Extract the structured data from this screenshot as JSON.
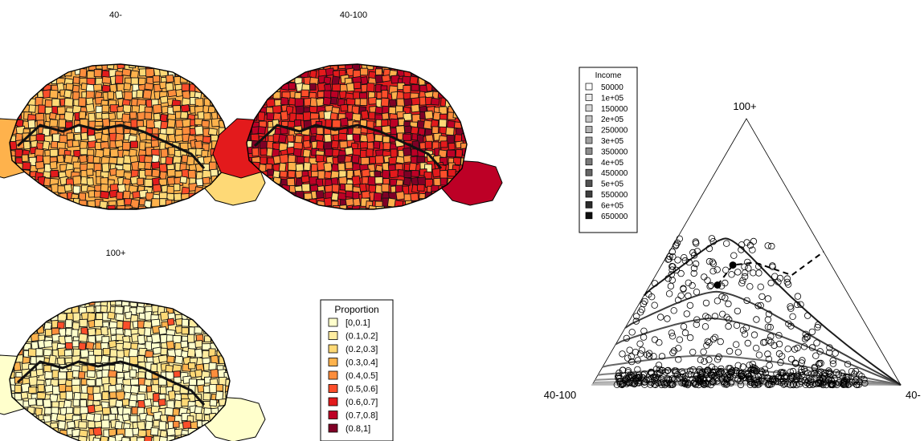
{
  "maps": [
    {
      "title": "40-",
      "palette": "low"
    },
    {
      "title": "40-100",
      "palette": "high"
    },
    {
      "title": "100+",
      "palette": "verylow"
    }
  ],
  "proportion_legend": {
    "title": "Proportion",
    "items": [
      {
        "label": "[0,0.1]",
        "color": "#FFFFCC"
      },
      {
        "label": "(0.1,0.2]",
        "color": "#FFEDA0"
      },
      {
        "label": "(0.2,0.3]",
        "color": "#FED976"
      },
      {
        "label": "(0.3,0.4]",
        "color": "#FEB24C"
      },
      {
        "label": "(0.4,0.5]",
        "color": "#FD8D3C"
      },
      {
        "label": "(0.5,0.6]",
        "color": "#FC4E2A"
      },
      {
        "label": "(0.6,0.7]",
        "color": "#E31A1C"
      },
      {
        "label": "(0.7,0.8]",
        "color": "#BD0026"
      },
      {
        "label": "(0.8,1]",
        "color": "#800026"
      }
    ]
  },
  "chart_data": {
    "type": "scatter",
    "plot": "ternary",
    "vertices": {
      "top": "100+",
      "left": "40-100",
      "right": "40-"
    },
    "legend": {
      "title": "Income",
      "placement": "top-left",
      "items": [
        {
          "label": "50000",
          "color": "#ffffff"
        },
        {
          "label": "1e+05",
          "color": "#ececec"
        },
        {
          "label": "150000",
          "color": "#d9d9d9"
        },
        {
          "label": "2e+05",
          "color": "#c6c6c6"
        },
        {
          "label": "250000",
          "color": "#b3b3b3"
        },
        {
          "label": "3e+05",
          "color": "#a0a0a0"
        },
        {
          "label": "350000",
          "color": "#8c8c8c"
        },
        {
          "label": "4e+05",
          "color": "#797979"
        },
        {
          "label": "450000",
          "color": "#666666"
        },
        {
          "label": "5e+05",
          "color": "#525252"
        },
        {
          "label": "550000",
          "color": "#3f3f3f"
        },
        {
          "label": "6e+05",
          "color": "#2c2c2c"
        },
        {
          "label": "650000",
          "color": "#0f0f0f"
        }
      ]
    },
    "income_curves": [
      {
        "income": 50000,
        "max_top": 0.0,
        "color": "#c8c8c8"
      },
      {
        "income": 100000,
        "max_top": 0.005,
        "color": "#b5b5b5"
      },
      {
        "income": 150000,
        "max_top": 0.015,
        "color": "#a2a2a2"
      },
      {
        "income": 200000,
        "max_top": 0.03,
        "color": "#8f8f8f"
      },
      {
        "income": 300000,
        "max_top": 0.06,
        "color": "#7c7c7c"
      },
      {
        "income": 400000,
        "max_top": 0.11,
        "color": "#666666"
      },
      {
        "income": 500000,
        "max_top": 0.25,
        "color": "#4e4e4e"
      },
      {
        "income": 550000,
        "max_top": 0.35,
        "color": "#3c3c3c"
      },
      {
        "income": 650000,
        "max_top": 0.55,
        "color": "#1c1c1c"
      }
    ],
    "expansion_path": {
      "style": "dashed",
      "points": [
        [
          0.35,
          0.375
        ],
        [
          0.42,
          0.45
        ],
        [
          0.55,
          0.46
        ],
        [
          0.75,
          0.412
        ],
        [
          1.0,
          0.5
        ]
      ]
    },
    "marked_points": [
      [
        0.35,
        0.375
      ],
      [
        0.42,
        0.45
      ]
    ],
    "observations": {
      "count": 650,
      "marker": "open-circle",
      "top_range": [
        0,
        0.6
      ],
      "mode_top": 0.04
    }
  }
}
